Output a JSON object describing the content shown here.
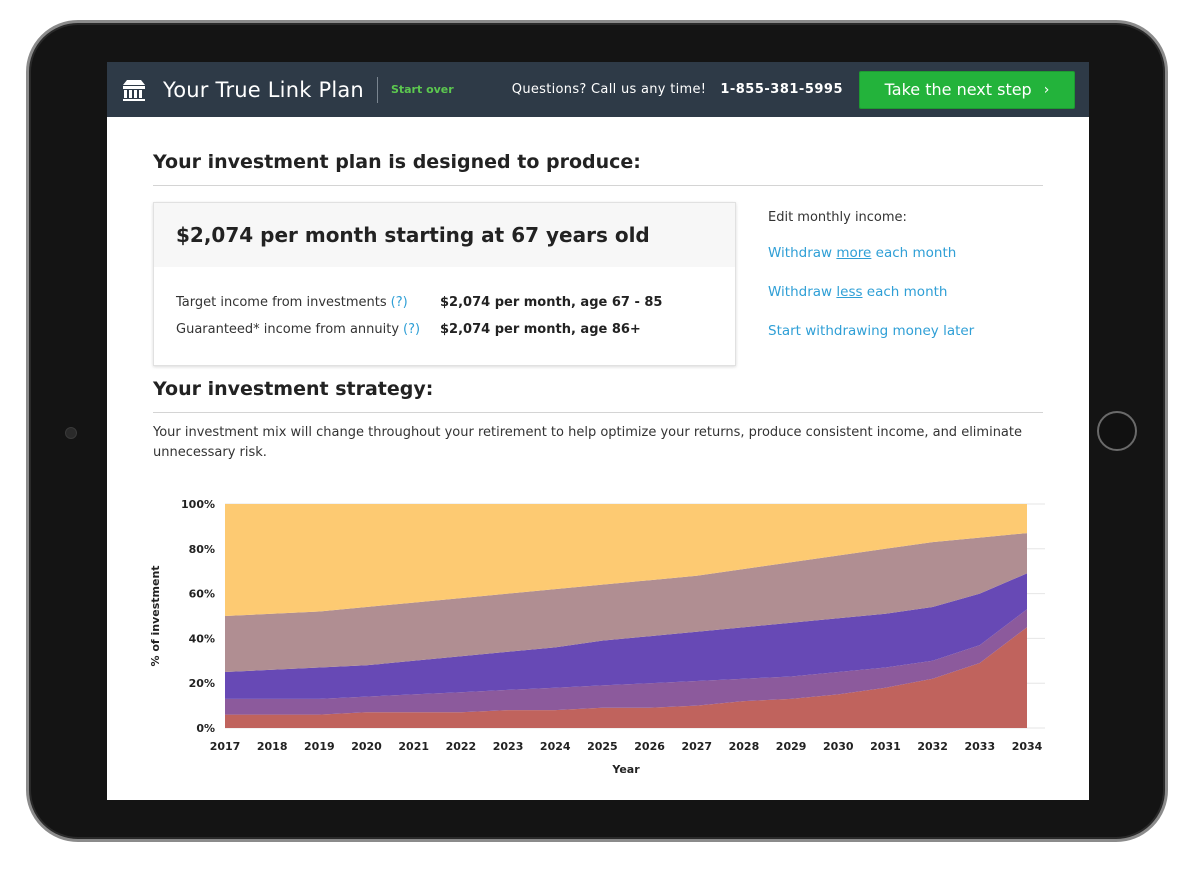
{
  "header": {
    "app_title": "Your True Link Plan",
    "start_over": "Start over",
    "questions": "Questions? Call us any time!",
    "phone": "1-855-381-5995",
    "next_step": "Take the next step",
    "next_step_chevron": "›"
  },
  "plan": {
    "heading": "Your investment plan is designed to produce:",
    "headline": "$2,074 per month starting at 67 years old",
    "rows": [
      {
        "label": "Target income from investments",
        "help": "(?)",
        "value": "$2,074 per month, age 67 - 85"
      },
      {
        "label": "Guaranteed* income from annuity",
        "help": "(?)",
        "value": "$2,074 per month, age 86+"
      }
    ]
  },
  "edit_income": {
    "title": "Edit monthly income:",
    "links": [
      {
        "before": "Withdraw ",
        "underlined": "more",
        "after": " each month"
      },
      {
        "before": "Withdraw ",
        "underlined": "less",
        "after": " each month"
      },
      {
        "before": "Start withdrawing money later",
        "underlined": "",
        "after": ""
      }
    ]
  },
  "strategy": {
    "heading": "Your investment strategy:",
    "description": "Your investment mix will change throughout your retirement to help optimize your returns, produce consistent income, and eliminate unnecessary risk."
  },
  "chart_data": {
    "type": "area",
    "stacked": true,
    "xlabel": "Year",
    "ylabel": "% of investment",
    "ylim": [
      0,
      100
    ],
    "yticks": [
      "0%",
      "20%",
      "40%",
      "60%",
      "80%",
      "100%"
    ],
    "x": [
      2017,
      2018,
      2019,
      2020,
      2021,
      2022,
      2023,
      2024,
      2025,
      2026,
      2027,
      2028,
      2029,
      2030,
      2031,
      2032,
      2033,
      2034
    ],
    "grid": true,
    "series": [
      {
        "color": "#c0635d",
        "values": [
          6,
          6,
          6,
          7,
          7,
          7,
          8,
          8,
          9,
          9,
          10,
          12,
          13,
          15,
          18,
          22,
          29,
          45
        ]
      },
      {
        "color": "#8c5a9c",
        "values": [
          7,
          7,
          7,
          7,
          8,
          9,
          9,
          10,
          10,
          11,
          11,
          10,
          10,
          10,
          9,
          8,
          8,
          8
        ]
      },
      {
        "color": "#6749b5",
        "values": [
          12,
          13,
          14,
          14,
          15,
          16,
          17,
          18,
          20,
          21,
          22,
          23,
          24,
          24,
          24,
          24,
          23,
          16
        ]
      },
      {
        "color": "#b08e92",
        "values": [
          25,
          25,
          25,
          26,
          26,
          26,
          26,
          26,
          25,
          25,
          25,
          26,
          27,
          28,
          29,
          29,
          25,
          18
        ]
      },
      {
        "color": "#fdca72",
        "values": [
          50,
          49,
          48,
          46,
          44,
          42,
          40,
          38,
          36,
          34,
          32,
          29,
          26,
          23,
          20,
          17,
          15,
          13
        ]
      }
    ]
  }
}
